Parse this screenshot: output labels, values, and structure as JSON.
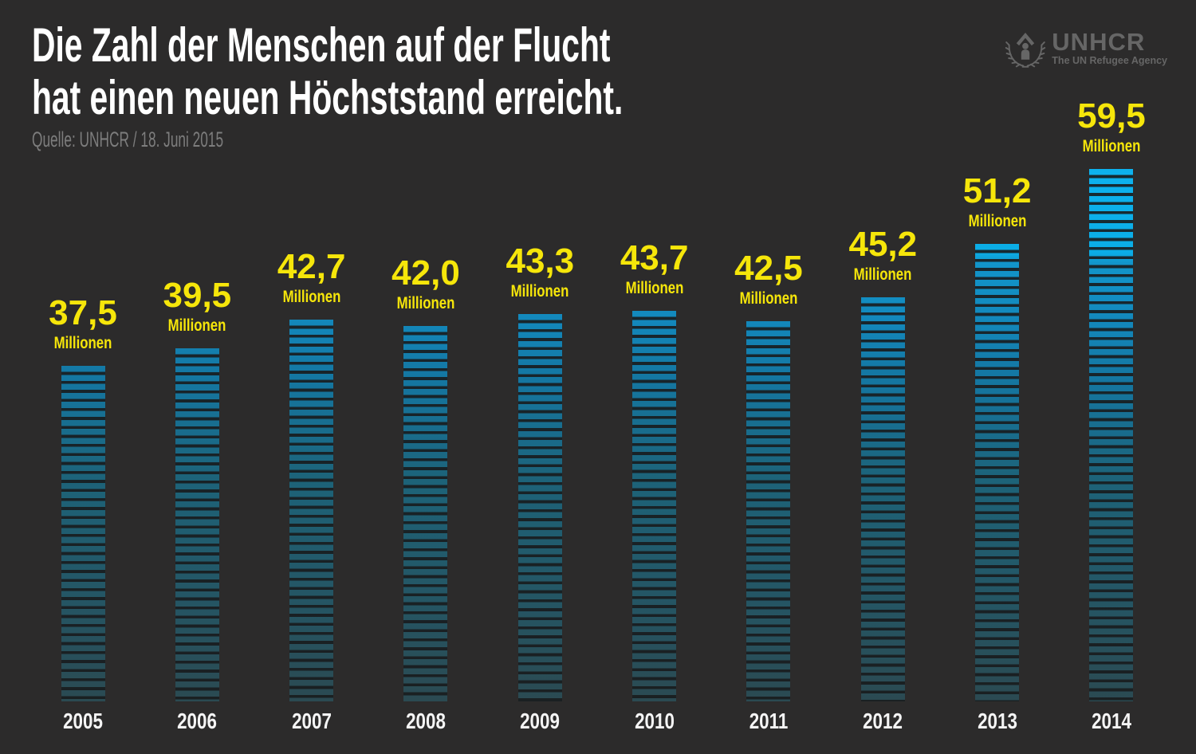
{
  "meta": {
    "background": "#2c2b2b"
  },
  "header": {
    "title_line1": "Die Zahl der Menschen auf der Flucht",
    "title_line2": "hat einen neuen Höchststand erreicht.",
    "source": "Quelle: UNHCR / 18. Juni 2015"
  },
  "logo": {
    "name": "UNHCR",
    "tagline": "The UN Refugee Agency",
    "color": "#666666"
  },
  "chart_data": {
    "type": "bar",
    "title": "Die Zahl der Menschen auf der Flucht hat einen neuen Höchststand erreicht.",
    "source": "Quelle: UNHCR / 18. Juni 2015",
    "categories": [
      "2005",
      "2006",
      "2007",
      "2008",
      "2009",
      "2010",
      "2011",
      "2012",
      "2013",
      "2014"
    ],
    "values": [
      37.5,
      39.5,
      42.7,
      42.0,
      43.3,
      43.7,
      42.5,
      45.2,
      51.2,
      59.5
    ],
    "value_labels": [
      "37,5",
      "39,5",
      "42,7",
      "42,0",
      "43,3",
      "43,7",
      "42,5",
      "45,2",
      "51,2",
      "59,5"
    ],
    "unit_label": "Millionen",
    "xlabel": "",
    "ylabel": "",
    "ylim": [
      0,
      62
    ],
    "grid": false,
    "legend": "none",
    "bar_style": "horizontal-striped",
    "colors": {
      "bar_top": "#0db2ee",
      "bar_bottom": "#2b4a52",
      "value_label": "#f6e60a",
      "axis_label": "#f5f5f5",
      "background": "#2c2b2b"
    }
  }
}
